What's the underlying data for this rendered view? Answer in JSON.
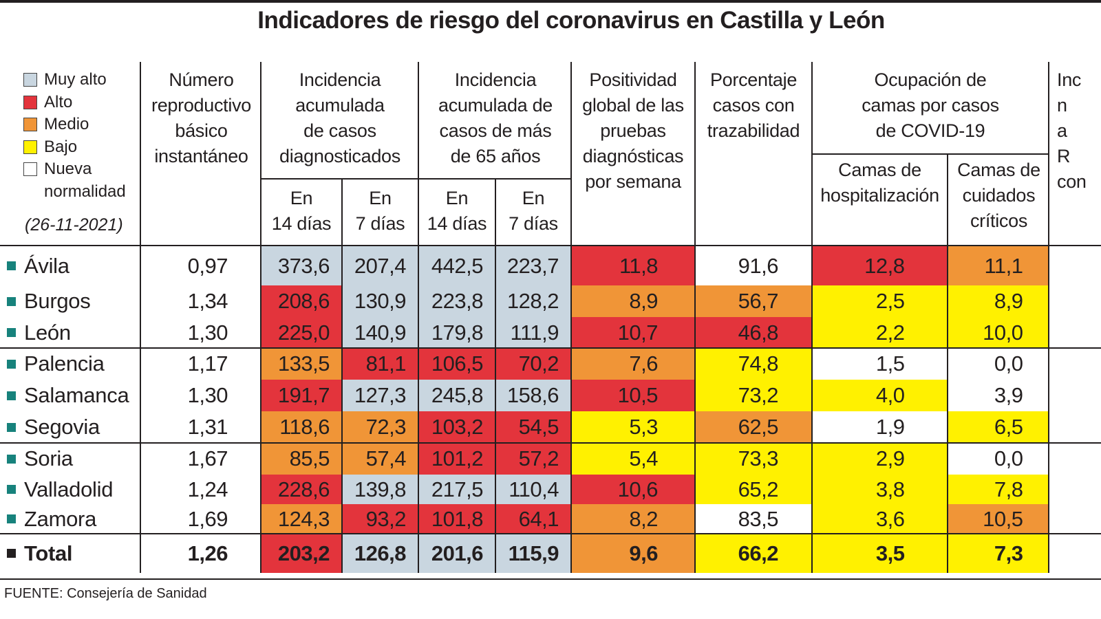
{
  "title": "Indicadores de riesgo del coronavirus en Castilla y León",
  "legend": {
    "items": [
      {
        "label": "Muy alto",
        "color": "#c9d6e0"
      },
      {
        "label": "Alto",
        "color": "#e3343c"
      },
      {
        "label": "Medio",
        "color": "#f09537"
      },
      {
        "label": "Bajo",
        "color": "#fff100"
      },
      {
        "label": "Nueva\nnormalidad",
        "color": "#ffffff"
      }
    ],
    "date": "(26-11-2021)"
  },
  "headers": {
    "r": "Número\nreproductivo\nbásico\ninstantáneo",
    "ia_all": "Incidencia\nacumulada\nde casos\ndiagnosticados",
    "ia_65": "Incidencia\nacumulada de\ncasos de más\nde 65 años",
    "d14": "En\n14 días",
    "d7": "En\n7 días",
    "positividad": "Positividad\nglobal de las\npruebas\ndiagnósticas\npor semana",
    "trazabilidad": "Porcentaje\ncasos con\ntrazabilidad",
    "ocupacion": "Ocupación de\ncamas por casos\nde COVID-19",
    "hosp": "Camas de\nhospitalización",
    "uci": "Camas de\ncuidados\ncríticos",
    "cut": "Inc\nn\na\nR\ncon"
  },
  "chart_data": {
    "type": "table",
    "title": "Indicadores de riesgo del coronavirus en Castilla y León",
    "columns": [
      "Número reproductivo básico instantáneo",
      "Incidencia acumulada 14 días",
      "Incidencia acumulada 7 días",
      "Incidencia >65 años 14 días",
      "Incidencia >65 años 7 días",
      "Positividad",
      "Trazabilidad",
      "Camas de hospitalización",
      "Camas de cuidados críticos"
    ],
    "level_colors": {
      "muy_alto": "#c9d6e0",
      "alto": "#e3343c",
      "medio": "#f09537",
      "bajo": "#fff100",
      "nueva": "#ffffff"
    },
    "rows": [
      {
        "name": "Ávila",
        "r": "0,97",
        "values": [
          "373,6",
          "207,4",
          "442,5",
          "223,7",
          "11,8",
          "91,6",
          "12,8",
          "11,1"
        ],
        "levels": [
          "muy_alto",
          "muy_alto",
          "muy_alto",
          "muy_alto",
          "alto",
          "nueva",
          "alto",
          "medio"
        ]
      },
      {
        "name": "Burgos",
        "r": "1,34",
        "values": [
          "208,6",
          "130,9",
          "223,8",
          "128,2",
          "8,9",
          "56,7",
          "2,5",
          "8,9"
        ],
        "levels": [
          "alto",
          "muy_alto",
          "muy_alto",
          "muy_alto",
          "medio",
          "medio",
          "bajo",
          "bajo"
        ]
      },
      {
        "name": "León",
        "r": "1,30",
        "values": [
          "225,0",
          "140,9",
          "179,8",
          "111,9",
          "10,7",
          "46,8",
          "2,2",
          "10,0"
        ],
        "levels": [
          "alto",
          "muy_alto",
          "muy_alto",
          "muy_alto",
          "alto",
          "alto",
          "bajo",
          "bajo"
        ]
      },
      {
        "name": "Palencia",
        "r": "1,17",
        "values": [
          "133,5",
          "81,1",
          "106,5",
          "70,2",
          "7,6",
          "74,8",
          "1,5",
          "0,0"
        ],
        "levels": [
          "medio",
          "alto",
          "alto",
          "alto",
          "medio",
          "bajo",
          "nueva",
          "nueva"
        ]
      },
      {
        "name": "Salamanca",
        "r": "1,30",
        "values": [
          "191,7",
          "127,3",
          "245,8",
          "158,6",
          "10,5",
          "73,2",
          "4,0",
          "3,9"
        ],
        "levels": [
          "alto",
          "muy_alto",
          "muy_alto",
          "muy_alto",
          "alto",
          "bajo",
          "bajo",
          "nueva"
        ]
      },
      {
        "name": "Segovia",
        "r": "1,31",
        "values": [
          "118,6",
          "72,3",
          "103,2",
          "54,5",
          "5,3",
          "62,5",
          "1,9",
          "6,5"
        ],
        "levels": [
          "medio",
          "medio",
          "alto",
          "alto",
          "bajo",
          "medio",
          "nueva",
          "bajo"
        ]
      },
      {
        "name": "Soria",
        "r": "1,67",
        "values": [
          "85,5",
          "57,4",
          "101,2",
          "57,2",
          "5,4",
          "73,3",
          "2,9",
          "0,0"
        ],
        "levels": [
          "medio",
          "medio",
          "alto",
          "alto",
          "bajo",
          "bajo",
          "bajo",
          "nueva"
        ]
      },
      {
        "name": "Valladolid",
        "r": "1,24",
        "values": [
          "228,6",
          "139,8",
          "217,5",
          "110,4",
          "10,6",
          "65,2",
          "3,8",
          "7,8"
        ],
        "levels": [
          "alto",
          "muy_alto",
          "muy_alto",
          "muy_alto",
          "alto",
          "bajo",
          "bajo",
          "bajo"
        ]
      },
      {
        "name": "Zamora",
        "r": "1,69",
        "values": [
          "124,3",
          "93,2",
          "101,8",
          "64,1",
          "8,2",
          "83,5",
          "3,6",
          "10,5"
        ],
        "levels": [
          "medio",
          "alto",
          "alto",
          "alto",
          "medio",
          "nueva",
          "bajo",
          "medio"
        ]
      },
      {
        "name": "Total",
        "r": "1,26",
        "values": [
          "203,2",
          "126,8",
          "201,6",
          "115,9",
          "9,6",
          "66,2",
          "3,5",
          "7,3"
        ],
        "levels": [
          "alto",
          "muy_alto",
          "muy_alto",
          "muy_alto",
          "medio",
          "bajo",
          "bajo",
          "bajo"
        ],
        "total": true
      }
    ]
  },
  "source": "FUENTE: Consejería de Sanidad"
}
